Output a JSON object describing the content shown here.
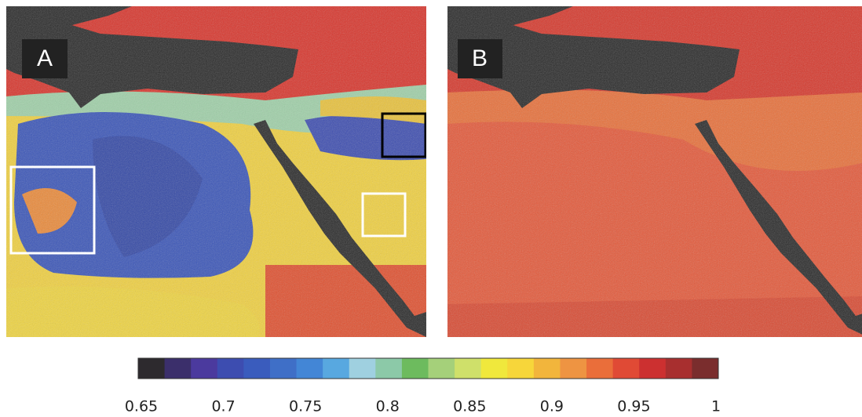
{
  "panels": [
    {
      "label": "A"
    },
    {
      "label": "B"
    }
  ],
  "colorbar": {
    "lim": [
      0.65,
      1
    ],
    "ticks": [
      0.65,
      0.7,
      0.75,
      0.8,
      0.85,
      0.9,
      0.95,
      1
    ],
    "colors": [
      "#2d2a2e",
      "#3b2f6b",
      "#4b3a9e",
      "#3d4db0",
      "#3a5cbd",
      "#3f6fc7",
      "#4386d6",
      "#58a8e0",
      "#9fd0e0",
      "#8cc9a8",
      "#6dbb5e",
      "#a5d07a",
      "#cfe06a",
      "#f0e83c",
      "#f7d63a",
      "#f2b53c",
      "#ee9442",
      "#ea6e3a",
      "#e04a35",
      "#cc3030",
      "#a82f2f",
      "#7a2d2d"
    ]
  }
}
